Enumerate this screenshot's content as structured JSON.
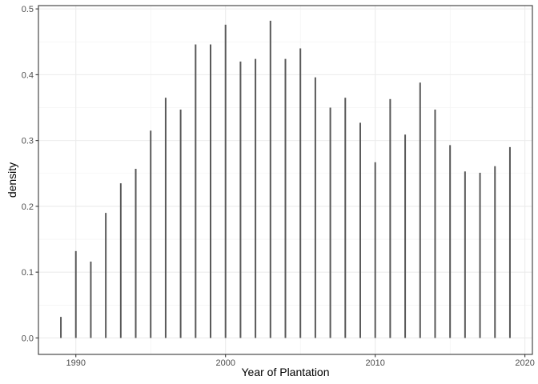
{
  "chart_data": {
    "type": "bar",
    "title": "",
    "xlabel": "Year of Plantation",
    "ylabel": "density",
    "xlim": [
      1987.5,
      2020.5
    ],
    "ylim": [
      -0.025,
      0.505
    ],
    "x_ticks": [
      1990,
      2000,
      2010,
      2020
    ],
    "x_tick_labels": [
      "1990",
      "2000",
      "2010",
      "2020"
    ],
    "y_ticks": [
      0.0,
      0.1,
      0.2,
      0.3,
      0.4,
      0.5
    ],
    "y_tick_labels": [
      "0.0",
      "0.1",
      "0.2",
      "0.3",
      "0.4",
      "0.5"
    ],
    "grid": true,
    "legend": "none",
    "bar_color": "#595959",
    "points": [
      {
        "x": 1989,
        "y": 0.032
      },
      {
        "x": 1990,
        "y": 0.132
      },
      {
        "x": 1991,
        "y": 0.116
      },
      {
        "x": 1992,
        "y": 0.19
      },
      {
        "x": 1993,
        "y": 0.235
      },
      {
        "x": 1994,
        "y": 0.257
      },
      {
        "x": 1995,
        "y": 0.315
      },
      {
        "x": 1996,
        "y": 0.365
      },
      {
        "x": 1997,
        "y": 0.347
      },
      {
        "x": 1998,
        "y": 0.446
      },
      {
        "x": 1999,
        "y": 0.446
      },
      {
        "x": 2000,
        "y": 0.476
      },
      {
        "x": 2001,
        "y": 0.42
      },
      {
        "x": 2002,
        "y": 0.424
      },
      {
        "x": 2003,
        "y": 0.482
      },
      {
        "x": 2004,
        "y": 0.424
      },
      {
        "x": 2005,
        "y": 0.44
      },
      {
        "x": 2006,
        "y": 0.396
      },
      {
        "x": 2007,
        "y": 0.35
      },
      {
        "x": 2008,
        "y": 0.365
      },
      {
        "x": 2009,
        "y": 0.327
      },
      {
        "x": 2010,
        "y": 0.267
      },
      {
        "x": 2011,
        "y": 0.363
      },
      {
        "x": 2012,
        "y": 0.309
      },
      {
        "x": 2013,
        "y": 0.388
      },
      {
        "x": 2014,
        "y": 0.347
      },
      {
        "x": 2015,
        "y": 0.293
      },
      {
        "x": 2016,
        "y": 0.253
      },
      {
        "x": 2017,
        "y": 0.251
      },
      {
        "x": 2018,
        "y": 0.261
      },
      {
        "x": 2019,
        "y": 0.29
      }
    ]
  }
}
